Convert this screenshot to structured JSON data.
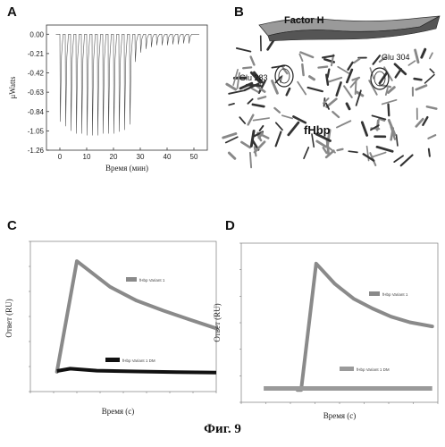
{
  "figure_caption": "Фиг. 9",
  "panels": {
    "A": {
      "letter": "A"
    },
    "B": {
      "letter": "B",
      "labels": {
        "factor_h": "Factor H",
        "glu283": "Glu 283",
        "glu304": "Glu 304",
        "fhbp": "fHbp"
      }
    },
    "C": {
      "letter": "C"
    },
    "D": {
      "letter": "D"
    }
  },
  "chart_data": [
    {
      "panel": "A",
      "type": "line",
      "xlabel": "Время (мин)",
      "ylabel": "μWatts",
      "xlim": [
        -5,
        55
      ],
      "ylim": [
        -1.26,
        0.1
      ],
      "x_ticks": [
        0,
        10,
        20,
        30,
        40,
        50
      ],
      "y_ticks": [
        0.0,
        -0.21,
        -0.42,
        -0.63,
        -0.84,
        -1.05,
        -1.26
      ],
      "y_tick_labels": [
        "0.00",
        "-0.21",
        "-0.42",
        "-0.63",
        "-0.84",
        "-1.05",
        "-1.26"
      ],
      "baseline": 0.0,
      "injection_times": [
        0,
        2,
        4,
        6,
        8,
        10,
        12,
        14,
        16,
        18,
        20,
        22,
        24,
        26,
        28,
        30,
        32,
        34,
        36,
        38,
        40,
        42,
        44,
        46,
        48
      ],
      "peak_minima": [
        -0.95,
        -1.0,
        -1.05,
        -1.08,
        -1.08,
        -1.1,
        -1.1,
        -1.1,
        -1.08,
        -1.08,
        -1.08,
        -1.06,
        -1.04,
        -0.98,
        -0.3,
        -0.2,
        -0.16,
        -0.14,
        -0.12,
        -0.12,
        -0.12,
        -0.11,
        -0.11,
        -0.1,
        -0.1
      ]
    },
    {
      "panel": "C",
      "type": "line",
      "xlabel": "Время (с)",
      "ylabel": "Ответ (RU)",
      "series": [
        {
          "name": "fHbp Variant 1",
          "x": [
            0,
            150,
            400,
            600,
            800,
            1000,
            1200
          ],
          "y": [
            0,
            280,
            215,
            180,
            155,
            132,
            110
          ]
        },
        {
          "name": "fHbp Variant 1 DM",
          "x": [
            0,
            100,
            300,
            600,
            900,
            1200
          ],
          "y": [
            2,
            8,
            3,
            1,
            -1,
            -2
          ]
        }
      ]
    },
    {
      "panel": "D",
      "type": "line",
      "xlabel": "Время (с)",
      "ylabel": "Ответ (RU)",
      "series": [
        {
          "name": "fHbp Variant 1",
          "x": [
            0,
            20,
            100,
            200,
            300,
            400,
            500,
            600,
            720
          ],
          "y": [
            0,
            0,
            155,
            130,
            112,
            100,
            90,
            83,
            78
          ]
        },
        {
          "name": "fHbp Variant 1 DM",
          "x": [
            -180,
            100,
            400,
            720
          ],
          "y": [
            2,
            2,
            2,
            2
          ]
        }
      ]
    }
  ]
}
